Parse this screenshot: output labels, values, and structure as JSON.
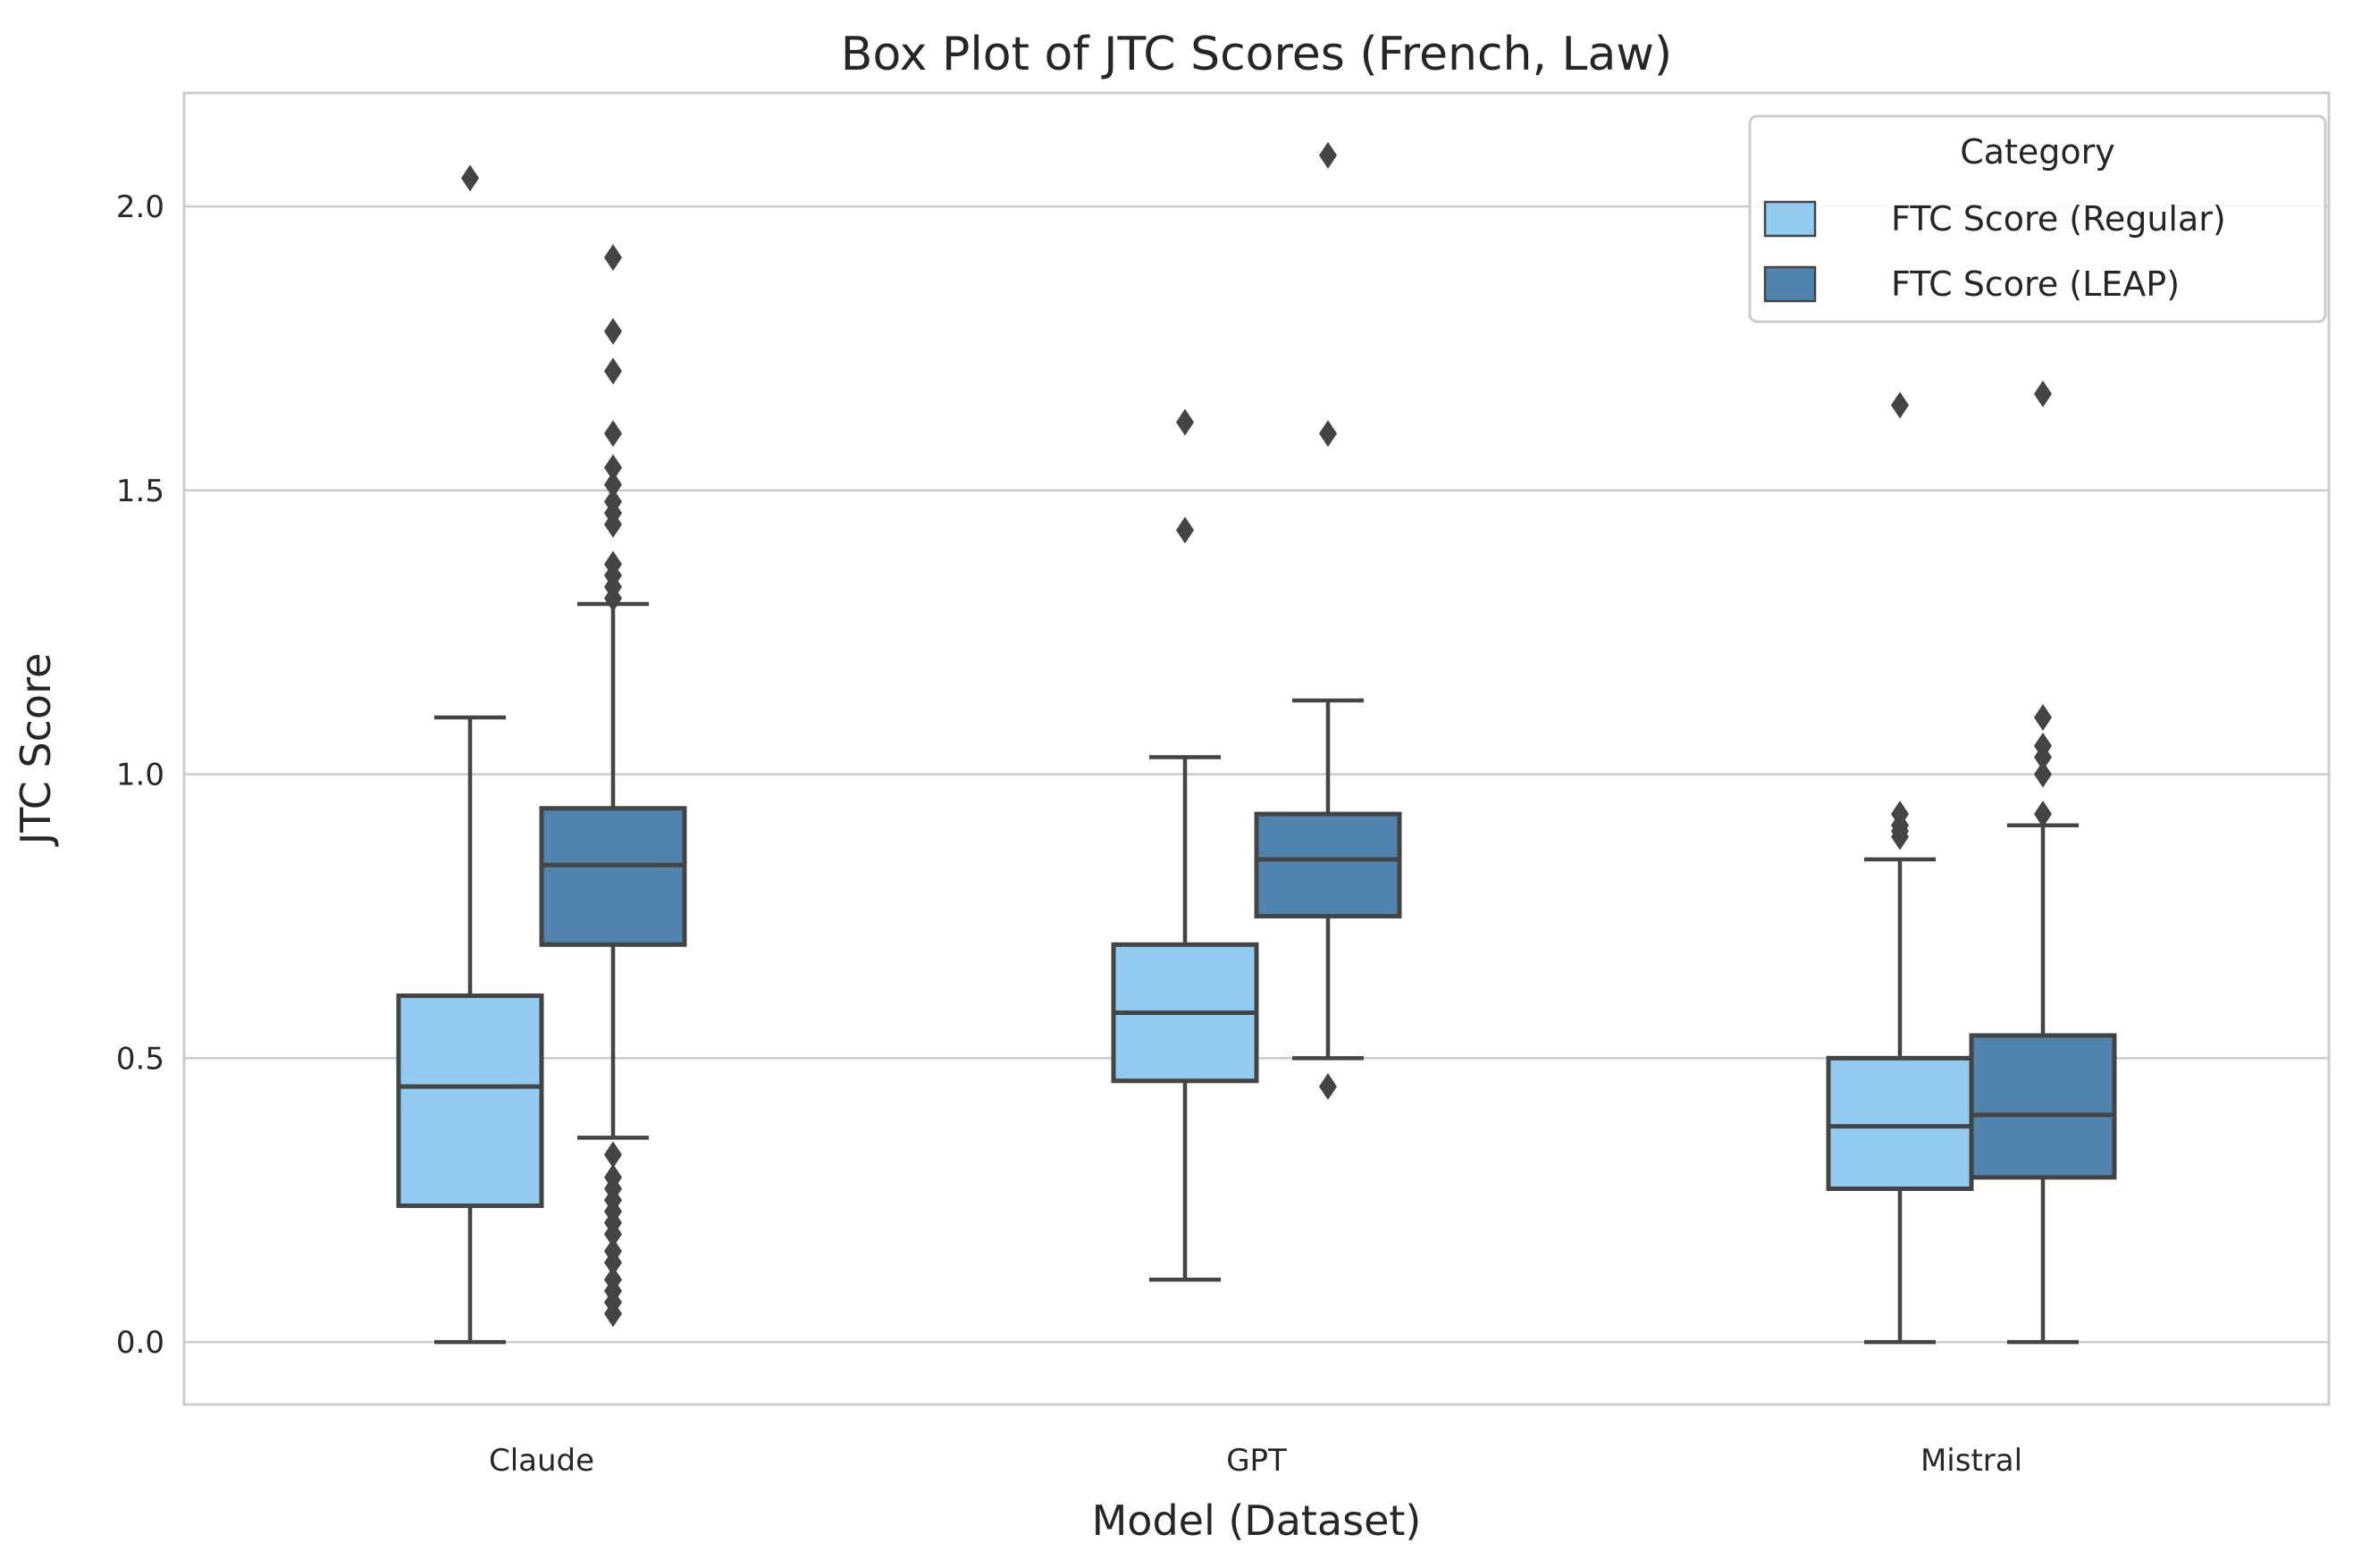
{
  "chart_data": {
    "type": "box",
    "title": "Box Plot of JTC Scores (French, Law)",
    "xlabel": "Model (Dataset)",
    "ylabel": "JTC Score",
    "ylim": [
      -0.11,
      2.2
    ],
    "yticks": [
      "0.0",
      "0.5",
      "1.0",
      "1.5",
      "2.0"
    ],
    "grid": true,
    "categories": [
      "Claude",
      "GPT",
      "Mistral"
    ],
    "legend": {
      "title": "Category",
      "placement": "top-right",
      "entries": [
        "FTC Score (Regular)",
        "FTC Score (LEAP)"
      ]
    },
    "colors": {
      "regular": "#92CAF0",
      "leap": "#5083AD",
      "edge": "#444444",
      "grid": "#CCCCCC",
      "frame": "#CCCCCC"
    },
    "series": [
      {
        "name": "FTC Score (Regular)",
        "boxes": [
          {
            "category": "Claude",
            "whisker_low": 0.0,
            "q1": 0.24,
            "median": 0.45,
            "q3": 0.61,
            "whisker_high": 1.1,
            "outliers": [
              2.05
            ]
          },
          {
            "category": "GPT",
            "whisker_low": 0.11,
            "q1": 0.46,
            "median": 0.58,
            "q3": 0.7,
            "whisker_high": 1.03,
            "outliers": [
              1.43,
              1.62
            ]
          },
          {
            "category": "Mistral",
            "whisker_low": 0.0,
            "q1": 0.27,
            "median": 0.38,
            "q3": 0.5,
            "whisker_high": 0.85,
            "outliers": [
              0.89,
              0.9,
              0.91,
              0.93,
              1.65
            ]
          }
        ]
      },
      {
        "name": "FTC Score (LEAP)",
        "boxes": [
          {
            "category": "Claude",
            "whisker_low": 0.36,
            "q1": 0.7,
            "median": 0.84,
            "q3": 0.94,
            "whisker_high": 1.3,
            "outliers": [
              0.05,
              0.07,
              0.09,
              0.11,
              0.14,
              0.16,
              0.19,
              0.21,
              0.23,
              0.25,
              0.27,
              0.29,
              0.33,
              1.31,
              1.33,
              1.35,
              1.37,
              1.44,
              1.46,
              1.48,
              1.51,
              1.54,
              1.6,
              1.71,
              1.78,
              1.91
            ]
          },
          {
            "category": "GPT",
            "whisker_low": 0.5,
            "q1": 0.75,
            "median": 0.85,
            "q3": 0.93,
            "whisker_high": 1.13,
            "outliers": [
              0.45,
              1.6,
              2.09
            ]
          },
          {
            "category": "Mistral",
            "whisker_low": 0.0,
            "q1": 0.29,
            "median": 0.4,
            "q3": 0.54,
            "whisker_high": 0.91,
            "outliers": [
              0.93,
              1.0,
              1.03,
              1.05,
              1.1,
              1.67
            ]
          }
        ]
      }
    ]
  }
}
